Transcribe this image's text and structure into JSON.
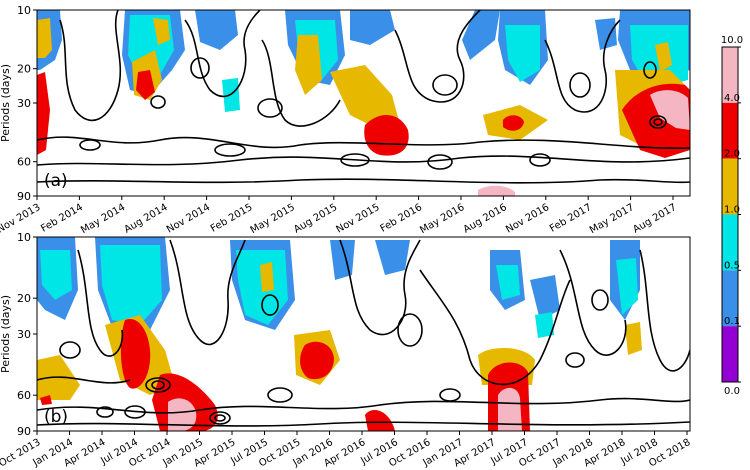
{
  "colors": {
    "level_0_0_1": "#9400d3",
    "level_0_1_0_5": "#3a8fe8",
    "level_0_5_1_0": "#00e5e5",
    "level_1_0_2_0": "#e6b800",
    "level_2_0_4_0": "#ee0000",
    "level_4_0_10_0": "#f4b6c2",
    "contour": "#000000"
  },
  "chart_data": [
    {
      "type": "heatmap",
      "panel_label": "(a)",
      "ylabel": "Periods (days)",
      "y_ticks": [
        "10",
        "20",
        "30",
        "60",
        "90"
      ],
      "ylim": [
        10,
        90
      ],
      "y_scale": "log",
      "x_tick_labels": [
        "Nov 2013",
        "Feb 2014",
        "May 2014",
        "Aug 2014",
        "Nov 2014",
        "Feb 2015",
        "May 2015",
        "Aug 2015",
        "Nov 2015",
        "Feb 2016",
        "May 2016",
        "Aug 2016",
        "Nov 2016",
        "Feb 2017",
        "May 2017",
        "Aug 2017"
      ],
      "xlim": [
        "2013-11",
        "2017-10"
      ],
      "features": [
        {
          "t": "2013-11",
          "period": 15,
          "level": 2
        },
        {
          "t": "2013-11",
          "period": 45,
          "level": 3
        },
        {
          "t": "2014-05",
          "period": 22,
          "level": 3
        },
        {
          "t": "2014-07",
          "period": 14,
          "level": 1
        },
        {
          "t": "2014-08",
          "period": 32,
          "level": 2
        },
        {
          "t": "2014-11",
          "period": 11,
          "level": 1
        },
        {
          "t": "2015-05",
          "period": 16,
          "level": 2
        },
        {
          "t": "2015-08",
          "period": 22,
          "level": 2
        },
        {
          "t": "2015-10",
          "period": 46,
          "level": 4
        },
        {
          "t": "2016-08",
          "period": 40,
          "level": 3
        },
        {
          "t": "2016-10",
          "period": 25,
          "level": 1
        },
        {
          "t": "2016-11",
          "period": 88,
          "level": 5
        },
        {
          "t": "2017-06",
          "period": 14,
          "level": 1
        },
        {
          "t": "2017-07",
          "period": 30,
          "level": 4
        },
        {
          "t": "2017-08",
          "period": 36,
          "level": 5
        },
        {
          "t": "2017-09",
          "period": 55,
          "level": 3
        }
      ]
    },
    {
      "type": "heatmap",
      "panel_label": "(b)",
      "ylabel": "Periods (days)",
      "y_ticks": [
        "10",
        "20",
        "30",
        "60",
        "90"
      ],
      "ylim": [
        10,
        90
      ],
      "y_scale": "log",
      "x_tick_labels": [
        "Oct 2013",
        "Jan 2014",
        "Apr 2014",
        "Jul 2014",
        "Oct 2014",
        "Jan 2015",
        "Apr 2015",
        "Jul 2015",
        "Oct 2015",
        "Jan 2016",
        "Apr 2016",
        "Jul 2016",
        "Oct 2016",
        "Jan 2017",
        "Apr 2017",
        "Jul 2017",
        "Oct 2017",
        "Jan 2018",
        "Apr 2018",
        "Jul 2018",
        "Oct 2018"
      ],
      "xlim": [
        "2013-10",
        "2018-12"
      ],
      "features": [
        {
          "t": "2013-11",
          "period": 55,
          "level": 2
        },
        {
          "t": "2014-04",
          "period": 20,
          "level": 1
        },
        {
          "t": "2014-04",
          "period": 60,
          "level": 4
        },
        {
          "t": "2014-07",
          "period": 38,
          "level": 4
        },
        {
          "t": "2014-08",
          "period": 22,
          "level": 1
        },
        {
          "t": "2014-11",
          "period": 75,
          "level": 5
        },
        {
          "t": "2015-06",
          "period": 22,
          "level": 2
        },
        {
          "t": "2015-07",
          "period": 35,
          "level": 2
        },
        {
          "t": "2015-08",
          "period": 45,
          "level": 4
        },
        {
          "t": "2016-02",
          "period": 14,
          "level": 1
        },
        {
          "t": "2016-07",
          "period": 85,
          "level": 4
        },
        {
          "t": "2017-06",
          "period": 19,
          "level": 1
        },
        {
          "t": "2017-07",
          "period": 62,
          "level": 4
        },
        {
          "t": "2017-07",
          "period": 78,
          "level": 5
        },
        {
          "t": "2018-07",
          "period": 30,
          "level": 1
        }
      ]
    }
  ],
  "colorbar": {
    "labels": [
      "0.0",
      "0.1",
      "0.5",
      "1.0",
      "2.0",
      "4.0",
      "10.0"
    ]
  }
}
